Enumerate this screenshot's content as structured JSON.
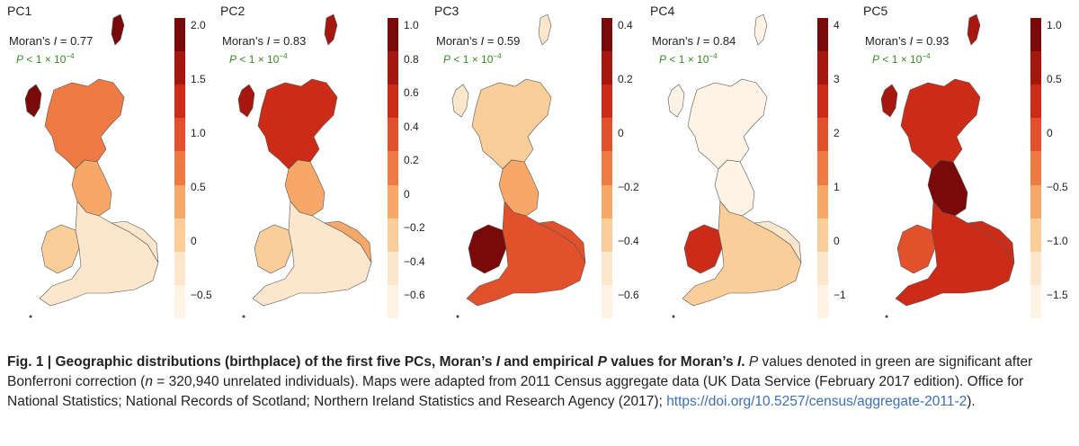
{
  "panels": [
    {
      "label": "PC1",
      "moran_prefix": "Moran’s ",
      "moran_italic": "I",
      "moran_value": " = 0.77",
      "p_italic": "P",
      "p_text": " < 1 × 10",
      "p_exp": "−4",
      "ticks": [
        "2.0",
        "1.5",
        "1.0",
        "0.5",
        "0",
        "−0.5"
      ],
      "colors": [
        "#7a0a0a",
        "#a6180f",
        "#cc2c17",
        "#e2512b",
        "#f07a43",
        "#f7a868",
        "#fbcd98",
        "#fde7cc",
        "#fff3e6"
      ],
      "region_fill": {
        "north": "#f07a43",
        "islands": "#7a0a0a",
        "middle": "#f7a868",
        "south": "#fde7cc",
        "wales": "#fbcd98",
        "east": "#fde7cc"
      }
    },
    {
      "label": "PC2",
      "moran_prefix": "Moran’s ",
      "moran_italic": "I",
      "moran_value": " = 0.83",
      "p_italic": "P",
      "p_text": " < 1 × 10",
      "p_exp": "−4",
      "ticks": [
        "1.0",
        "0.8",
        "0.6",
        "0.4",
        "0.2",
        "0",
        "−0.2",
        "−0.4",
        "−0.6"
      ],
      "colors": [
        "#7a0a0a",
        "#a6180f",
        "#cc2c17",
        "#e2512b",
        "#f07a43",
        "#f7a868",
        "#fbcd98",
        "#fde7cc",
        "#fff3e6"
      ],
      "region_fill": {
        "north": "#cc2c17",
        "islands": "#a6180f",
        "middle": "#f7a868",
        "south": "#fde7cc",
        "wales": "#fbcd98",
        "east": "#f7a868"
      }
    },
    {
      "label": "PC3",
      "moran_prefix": "Moran’s ",
      "moran_italic": "I",
      "moran_value": " = 0.59",
      "p_italic": "P",
      "p_text": " < 1 × 10",
      "p_exp": "−4",
      "ticks": [
        "0.4",
        "0.2",
        "0",
        "−0.2",
        "−0.4",
        "−0.6"
      ],
      "colors": [
        "#7a0a0a",
        "#a6180f",
        "#cc2c17",
        "#e2512b",
        "#f07a43",
        "#f7a868",
        "#fbcd98",
        "#fde7cc",
        "#fff3e6"
      ],
      "region_fill": {
        "north": "#fbcd98",
        "islands": "#fde7cc",
        "middle": "#f7a868",
        "south": "#e2512b",
        "wales": "#7a0a0a",
        "east": "#e2512b"
      }
    },
    {
      "label": "PC4",
      "moran_prefix": "Moran’s ",
      "moran_italic": "I",
      "moran_value": " = 0.84",
      "p_italic": "P",
      "p_text": " < 1 × 10",
      "p_exp": "−4",
      "ticks": [
        "4",
        "3",
        "2",
        "1",
        "0",
        "−1"
      ],
      "colors": [
        "#7a0a0a",
        "#a6180f",
        "#cc2c17",
        "#e2512b",
        "#f07a43",
        "#f7a868",
        "#fbcd98",
        "#fde7cc",
        "#fff3e6"
      ],
      "region_fill": {
        "north": "#fff3e6",
        "islands": "#fff3e6",
        "middle": "#fff3e6",
        "south": "#fbcd98",
        "wales": "#cc2c17",
        "east": "#fde7cc"
      }
    },
    {
      "label": "PC5",
      "moran_prefix": "Moran’s ",
      "moran_italic": "I",
      "moran_value": " = 0.93",
      "p_italic": "P",
      "p_text": " < 1 × 10",
      "p_exp": "−4",
      "ticks": [
        "1.0",
        "0.5",
        "0",
        "−0.5",
        "−1.0",
        "−1.5"
      ],
      "colors": [
        "#7a0a0a",
        "#a6180f",
        "#cc2c17",
        "#e2512b",
        "#f07a43",
        "#f7a868",
        "#fbcd98",
        "#fde7cc",
        "#fff3e6"
      ],
      "region_fill": {
        "north": "#cc2c17",
        "islands": "#a6180f",
        "middle": "#7a0a0a",
        "south": "#cc2c17",
        "wales": "#e2512b",
        "east": "#cc2c17"
      }
    }
  ],
  "caption": {
    "fig_label": "Fig. 1 | ",
    "bold_a": "Geographic distributions (birthplace) of the first five PCs, Moran’s ",
    "bold_i1": "I",
    "bold_b": " and empirical ",
    "bold_p": "P",
    "bold_c": " values for Moran’s ",
    "bold_i2": "I",
    "bold_d": ".",
    "text_p": " P",
    "text_1": " values denoted in green are significant after Bonferroni correction (",
    "text_n": "n",
    "text_2": " = 320,940 unrelated individuals). Maps were adapted from 2011 Census aggregate data (UK Data Service (February 2017 edition). Office for National Statistics; National Records of Scotland; Northern Ireland Statistics and Research Agency (2017); ",
    "link": "https://doi.org/10.5257/census/aggregate-2011-2",
    "text_end": ")."
  }
}
